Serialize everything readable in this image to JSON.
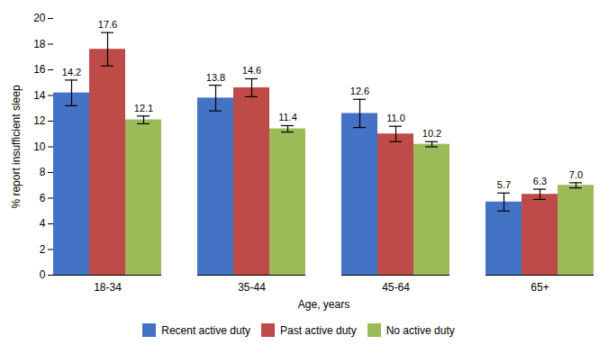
{
  "chart_data": {
    "type": "bar",
    "categories": [
      "18-34",
      "35-44",
      "45-64",
      "65+"
    ],
    "series": [
      {
        "name": "Recent active duty",
        "color": "#4472C4",
        "values": [
          14.2,
          13.8,
          12.6,
          5.7
        ],
        "errors": [
          1.0,
          1.0,
          1.1,
          0.7
        ],
        "value_labels": [
          "14.2",
          "13.8",
          "12.6",
          "5.7"
        ]
      },
      {
        "name": "Past active duty",
        "color": "#BE4B48",
        "values": [
          17.6,
          14.6,
          11.0,
          6.3
        ],
        "errors": [
          1.3,
          0.7,
          0.6,
          0.4
        ],
        "value_labels": [
          "17.6",
          "14.6",
          "11.0",
          "6.3"
        ]
      },
      {
        "name": "No active duty",
        "color": "#9BBB59",
        "values": [
          12.1,
          11.4,
          10.2,
          7.0
        ],
        "errors": [
          0.3,
          0.25,
          0.2,
          0.2
        ],
        "value_labels": [
          "12.1",
          "11.4",
          "10.2",
          "7.0"
        ]
      }
    ],
    "xlabel": "Age, years",
    "ylabel": "% report insufficient sleep",
    "ylim": [
      0,
      20
    ],
    "yticks": [
      0,
      2,
      4,
      6,
      8,
      10,
      12,
      14,
      16,
      18,
      20
    ],
    "data_labels": true,
    "legend": "bottom",
    "grid": false
  }
}
